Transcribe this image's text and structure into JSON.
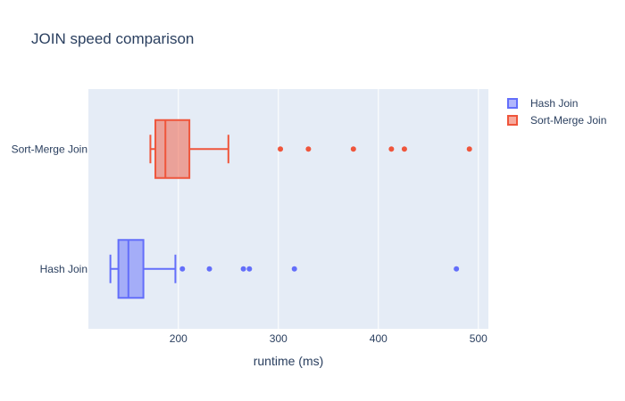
{
  "chart_data": {
    "type": "box",
    "orientation": "horizontal",
    "title": "JOIN speed comparison",
    "xlabel": "runtime (ms)",
    "ylabel": "",
    "xlim": [
      110,
      510
    ],
    "xticks": [
      200,
      300,
      400,
      500
    ],
    "grid": true,
    "legend_position": "top-right",
    "categories": [
      "Hash Join",
      "Sort-Merge Join"
    ],
    "series": [
      {
        "name": "Hash Join",
        "color": "#636efa",
        "lower_fence": 132,
        "q1": 140,
        "median": 150,
        "q3": 165,
        "upper_fence": 197,
        "outliers": [
          204,
          231,
          265,
          271,
          316,
          478
        ]
      },
      {
        "name": "Sort-Merge Join",
        "color": "#ef553b",
        "lower_fence": 172,
        "q1": 177,
        "median": 187,
        "q3": 211,
        "upper_fence": 250,
        "outliers": [
          302,
          330,
          375,
          413,
          426,
          491
        ]
      }
    ]
  }
}
